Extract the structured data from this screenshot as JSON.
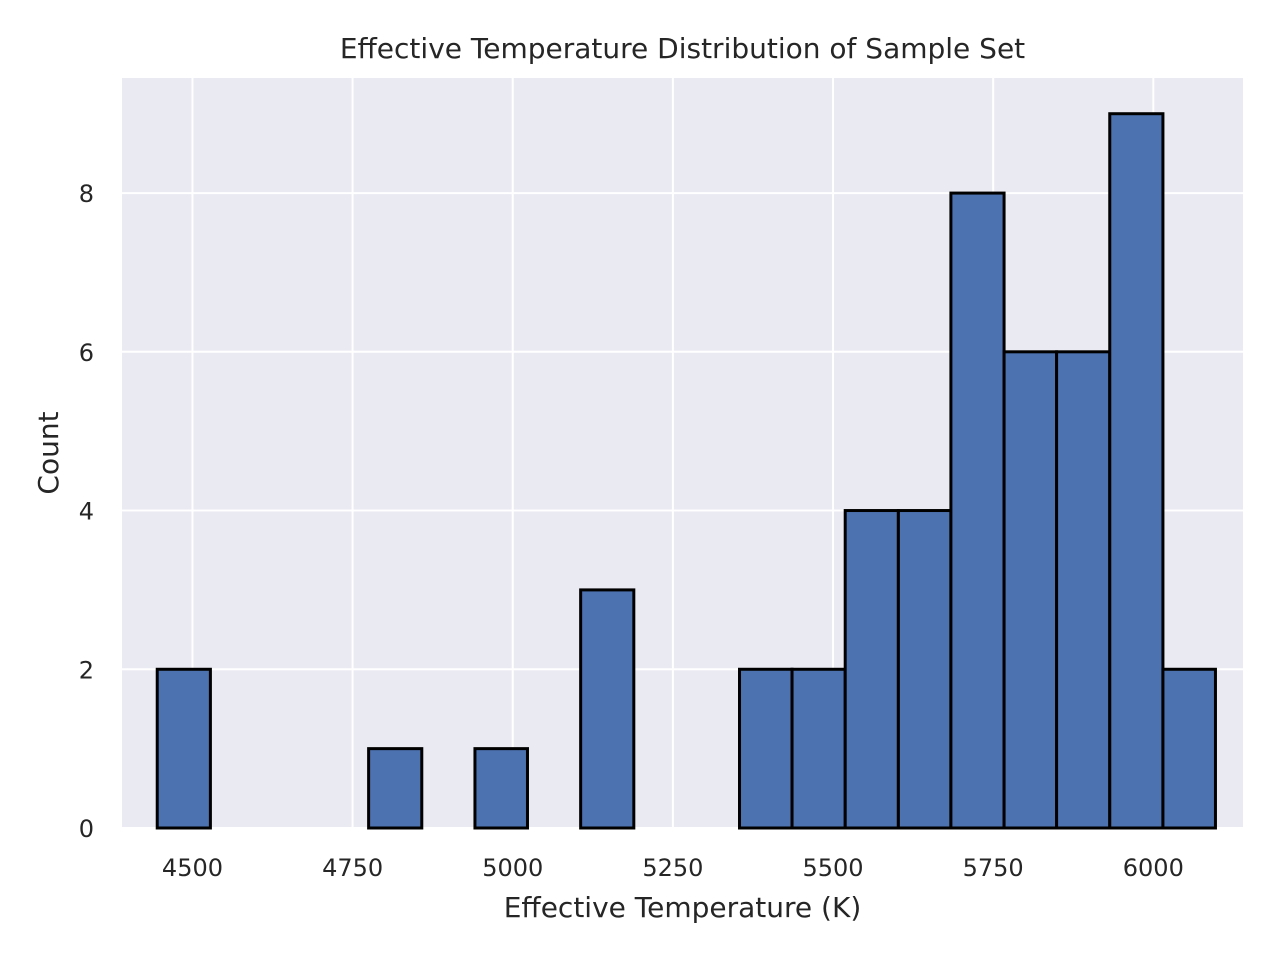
{
  "chart_data": {
    "type": "bar",
    "title": "Effective Temperature Distribution of Sample Set",
    "xlabel": "Effective Temperature (K)",
    "ylabel": "Count",
    "xlim": [
      4390,
      6140
    ],
    "ylim": [
      0,
      9.45
    ],
    "x_ticks": [
      4500,
      4750,
      5000,
      5250,
      5500,
      5750,
      6000
    ],
    "y_ticks": [
      0,
      2,
      4,
      6,
      8
    ],
    "bins": [
      {
        "x0": 4445,
        "x1": 4528,
        "count": 2
      },
      {
        "x0": 4528,
        "x1": 4610,
        "count": 0
      },
      {
        "x0": 4610,
        "x1": 4693,
        "count": 0
      },
      {
        "x0": 4693,
        "x1": 4775,
        "count": 0
      },
      {
        "x0": 4775,
        "x1": 4858,
        "count": 1
      },
      {
        "x0": 4858,
        "x1": 4941,
        "count": 0
      },
      {
        "x0": 4941,
        "x1": 5023,
        "count": 1
      },
      {
        "x0": 5023,
        "x1": 5106,
        "count": 0
      },
      {
        "x0": 5106,
        "x1": 5189,
        "count": 3
      },
      {
        "x0": 5189,
        "x1": 5271,
        "count": 0
      },
      {
        "x0": 5271,
        "x1": 5354,
        "count": 0
      },
      {
        "x0": 5354,
        "x1": 5436,
        "count": 2
      },
      {
        "x0": 5436,
        "x1": 5519,
        "count": 2
      },
      {
        "x0": 5519,
        "x1": 5602,
        "count": 4
      },
      {
        "x0": 5602,
        "x1": 5684,
        "count": 4
      },
      {
        "x0": 5684,
        "x1": 5767,
        "count": 8
      },
      {
        "x0": 5767,
        "x1": 5849,
        "count": 6
      },
      {
        "x0": 5849,
        "x1": 5932,
        "count": 6
      },
      {
        "x0": 5932,
        "x1": 6015,
        "count": 9
      },
      {
        "x0": 6015,
        "x1": 6097,
        "count": 2
      }
    ],
    "grid": true,
    "legend": "none",
    "colors": {
      "bar_fill": "#4c72b0",
      "bar_edge": "#000000",
      "plot_background": "#eaeaf2",
      "grid": "#ffffff",
      "text": "#262626"
    }
  }
}
